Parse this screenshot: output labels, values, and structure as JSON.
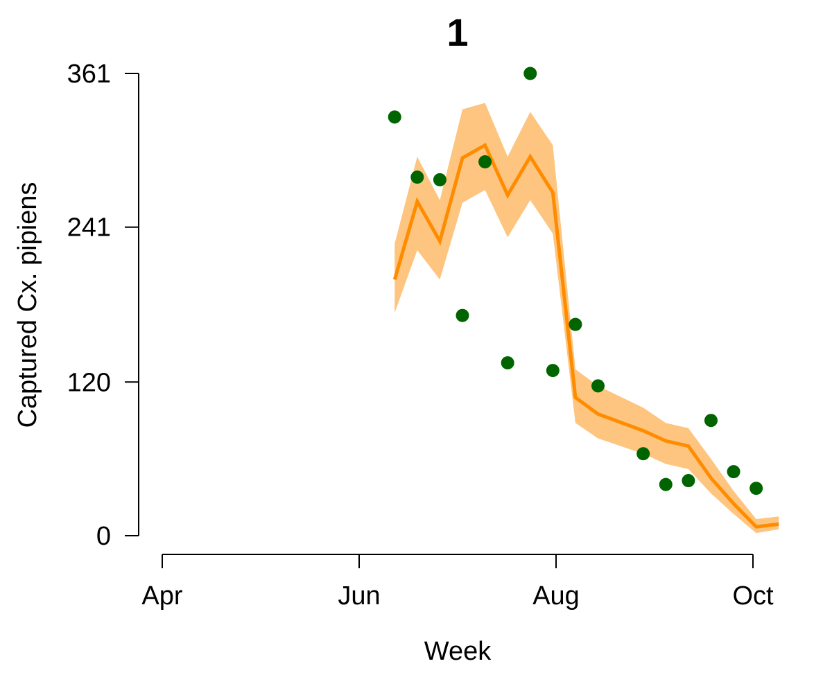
{
  "chart_data": {
    "type": "line",
    "title": "1",
    "xlabel": "Week",
    "ylabel": "Captured Cx. pipiens",
    "x_ticks": [
      "Apr",
      "Jun",
      "Aug",
      "Oct"
    ],
    "y_ticks": [
      "0",
      "120",
      "241",
      "361"
    ],
    "ylim": [
      0,
      361
    ],
    "x_tick_dates": [
      "2016-04-01",
      "2016-06-01",
      "2016-08-01",
      "2016-10-01"
    ],
    "grid": false,
    "series": [
      {
        "kind": "line_with_band",
        "color": "#FF8C00",
        "band_color": "#FDC57F",
        "dates": [
          "2016-06-12",
          "2016-06-19",
          "2016-06-26",
          "2016-07-03",
          "2016-07-10",
          "2016-07-17",
          "2016-07-24",
          "2016-07-31",
          "2016-08-07",
          "2016-08-14",
          "2016-08-28",
          "2016-09-04",
          "2016-09-11",
          "2016-09-18",
          "2016-09-25",
          "2016-10-02",
          "2016-10-09"
        ],
        "values": [
          200,
          261,
          230,
          295,
          305,
          266,
          296,
          268,
          108,
          95,
          82,
          74,
          70,
          45,
          25,
          7,
          9
        ],
        "lower": [
          174,
          223,
          200,
          260,
          270,
          233,
          262,
          236,
          88,
          76,
          64,
          56,
          52,
          33,
          17,
          2,
          5
        ],
        "upper": [
          228,
          296,
          262,
          333,
          338,
          296,
          331,
          305,
          130,
          117,
          100,
          88,
          84,
          60,
          35,
          13,
          15
        ]
      },
      {
        "kind": "points",
        "color": "#006400",
        "dates": [
          "2016-06-12",
          "2016-06-19",
          "2016-06-26",
          "2016-07-03",
          "2016-07-10",
          "2016-07-17",
          "2016-07-24",
          "2016-07-31",
          "2016-08-07",
          "2016-08-14",
          "2016-08-28",
          "2016-09-04",
          "2016-09-11",
          "2016-09-18",
          "2016-09-25",
          "2016-10-02"
        ],
        "values": [
          327,
          280,
          278,
          172,
          292,
          135,
          361,
          129,
          165,
          117,
          64,
          40,
          43,
          90,
          50,
          37
        ]
      }
    ]
  }
}
